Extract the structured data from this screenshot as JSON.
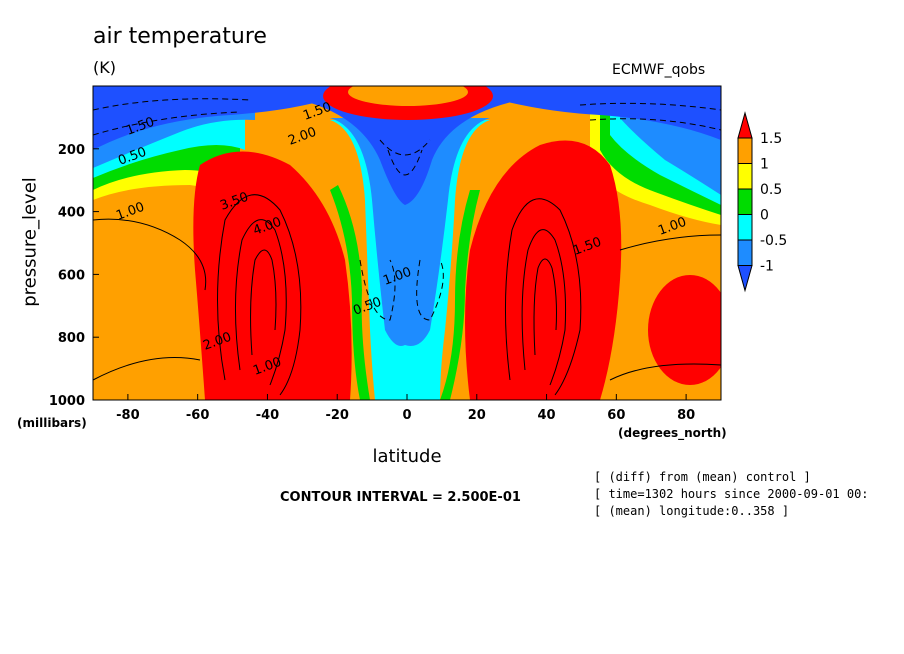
{
  "chart_data": {
    "type": "heatmap",
    "title": "air temperature",
    "units": "(K)",
    "dataset_label": "ECMWF_qobs",
    "xlabel": "latitude",
    "xlabel_units": "(degrees_north)",
    "ylabel": "pressure_level",
    "ylabel_units": "(millibars)",
    "xlim": [
      -90,
      90
    ],
    "ylim": [
      1000,
      0
    ],
    "x_ticks": [
      "-80",
      "-60",
      "-40",
      "-20",
      "0",
      "20",
      "40",
      "60",
      "80"
    ],
    "y_ticks": [
      "200",
      "400",
      "600",
      "800",
      "1000"
    ],
    "colorbar": {
      "levels": [
        "1.5",
        "1",
        "0.5",
        "0",
        "-0.5",
        "-1"
      ],
      "colors": [
        "#ff0000",
        "#ffa000",
        "#ffff00",
        "#00dc00",
        "#00ffff",
        "#1e8cff",
        "#1e50ff"
      ]
    },
    "contour_labels": [
      "1.00",
      "0.50",
      "1.50",
      "2.00",
      "1.00",
      "1.50",
      "2.00",
      "4.00",
      "3.50",
      "1.00",
      "0.50",
      "1.00",
      "1.50"
    ],
    "contour_interval": "CONTOUR INTERVAL = 2.500E-01",
    "notes": [
      "[ (diff) from (mean) control ]",
      "[ time=1302 hours since 2000-09-01 00:",
      "[ (mean) longitude:0..358 ]"
    ]
  }
}
